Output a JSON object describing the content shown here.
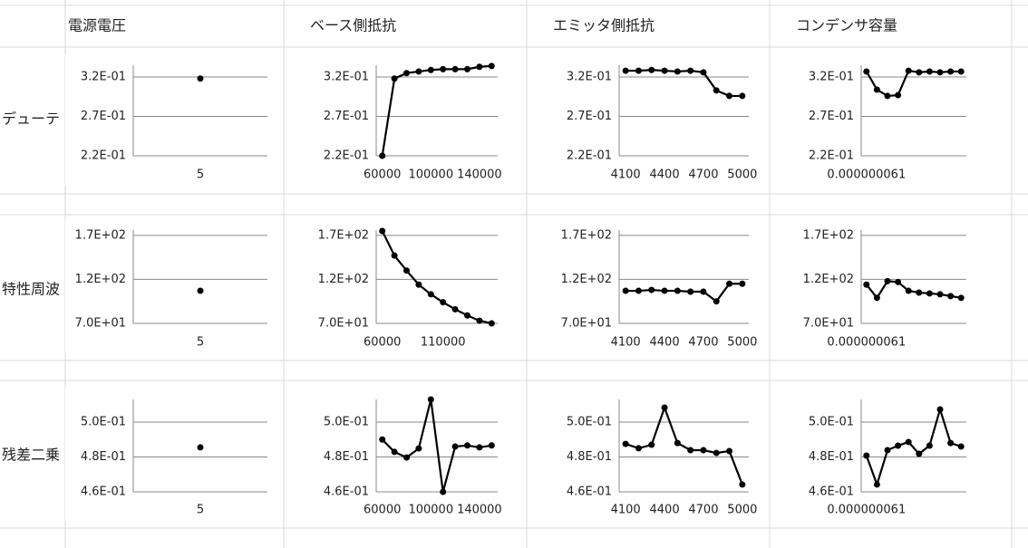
{
  "column_headers": [
    "電源電圧",
    "ベース側抵抗",
    "エミッタ側抵抗",
    "コンデンサ容量"
  ],
  "row_headers": [
    "デューテ",
    "特性周波",
    "残差二乗"
  ],
  "chart_data": [
    {
      "type": "line",
      "categories": [
        "5"
      ],
      "values": [
        0.318
      ],
      "color": "#000000",
      "ylim": [
        0.22,
        0.335
      ],
      "yticks": [
        {
          "value": 0.22,
          "label": "2.2E-01"
        },
        {
          "value": 0.27,
          "label": "2.7E-01"
        },
        {
          "value": 0.32,
          "label": "3.2E-01"
        }
      ],
      "grid": true
    },
    {
      "type": "line",
      "categories": [
        "60000",
        null,
        null,
        null,
        "100000",
        null,
        null,
        null,
        "140000",
        null
      ],
      "values": [
        0.22,
        0.318,
        0.325,
        0.327,
        0.329,
        0.33,
        0.33,
        0.33,
        0.333,
        0.334
      ],
      "color": "#000000",
      "ylim": [
        0.22,
        0.335
      ],
      "yticks": [
        {
          "value": 0.22,
          "label": "2.2E-01"
        },
        {
          "value": 0.27,
          "label": "2.7E-01"
        },
        {
          "value": 0.32,
          "label": "3.2E-01"
        }
      ],
      "grid": true
    },
    {
      "type": "line",
      "categories": [
        "4100",
        null,
        null,
        "4400",
        null,
        null,
        "4700",
        null,
        null,
        "5000"
      ],
      "values": [
        0.328,
        0.328,
        0.329,
        0.328,
        0.327,
        0.328,
        0.326,
        0.303,
        0.296,
        0.296
      ],
      "color": "#000000",
      "ylim": [
        0.22,
        0.335
      ],
      "yticks": [
        {
          "value": 0.22,
          "label": "2.2E-01"
        },
        {
          "value": 0.27,
          "label": "2.7E-01"
        },
        {
          "value": 0.32,
          "label": "3.2E-01"
        }
      ],
      "grid": true
    },
    {
      "type": "line",
      "categories": [
        "0.000000061",
        null,
        null,
        null,
        null,
        null,
        null,
        null,
        null,
        null
      ],
      "values": [
        0.327,
        0.304,
        0.296,
        0.297,
        0.328,
        0.326,
        0.327,
        0.326,
        0.327,
        0.327
      ],
      "color": "#000000",
      "ylim": [
        0.22,
        0.335
      ],
      "yticks": [
        {
          "value": 0.22,
          "label": "2.2E-01"
        },
        {
          "value": 0.27,
          "label": "2.7E-01"
        },
        {
          "value": 0.32,
          "label": "3.2E-01"
        }
      ],
      "grid": true
    },
    {
      "type": "line",
      "categories": [
        "5"
      ],
      "values": [
        107
      ],
      "color": "#000000",
      "ylim": [
        70,
        176
      ],
      "yticks": [
        {
          "value": 70,
          "label": "7.0E+01"
        },
        {
          "value": 120,
          "label": "1.2E+02"
        },
        {
          "value": 170,
          "label": "1.7E+02"
        }
      ],
      "grid": true
    },
    {
      "type": "line",
      "categories": [
        "60000",
        null,
        null,
        null,
        null,
        "110000",
        null,
        null,
        null,
        null
      ],
      "values": [
        175,
        147,
        130,
        114,
        103,
        94,
        86,
        79,
        73,
        70
      ],
      "color": "#000000",
      "ylim": [
        70,
        176
      ],
      "yticks": [
        {
          "value": 70,
          "label": "7.0E+01"
        },
        {
          "value": 120,
          "label": "1.2E+02"
        },
        {
          "value": 170,
          "label": "1.7E+02"
        }
      ],
      "grid": true
    },
    {
      "type": "line",
      "categories": [
        "4100",
        null,
        null,
        "4400",
        null,
        null,
        "4700",
        null,
        null,
        "5000"
      ],
      "values": [
        107,
        107,
        108,
        107,
        107,
        106,
        106,
        95,
        115,
        115
      ],
      "color": "#000000",
      "ylim": [
        70,
        176
      ],
      "yticks": [
        {
          "value": 70,
          "label": "7.0E+01"
        },
        {
          "value": 120,
          "label": "1.2E+02"
        },
        {
          "value": 170,
          "label": "1.7E+02"
        }
      ],
      "grid": true
    },
    {
      "type": "line",
      "categories": [
        "0.000000061",
        null,
        null,
        null,
        null,
        null,
        null,
        null,
        null,
        null
      ],
      "values": [
        114,
        99,
        118,
        117,
        107,
        105,
        104,
        103,
        101,
        99
      ],
      "color": "#000000",
      "ylim": [
        70,
        176
      ],
      "yticks": [
        {
          "value": 70,
          "label": "7.0E+01"
        },
        {
          "value": 120,
          "label": "1.2E+02"
        },
        {
          "value": 170,
          "label": "1.7E+02"
        }
      ],
      "grid": true
    },
    {
      "type": "line",
      "categories": [
        "5"
      ],
      "values": [
        0.4855
      ],
      "color": "#000000",
      "ylim": [
        0.46,
        0.513
      ],
      "yticks": [
        {
          "value": 0.46,
          "label": "4.6E-01"
        },
        {
          "value": 0.48,
          "label": "4.8E-01"
        },
        {
          "value": 0.5,
          "label": "5.0E-01"
        }
      ],
      "grid": true
    },
    {
      "type": "line",
      "categories": [
        "60000",
        null,
        null,
        null,
        "100000",
        null,
        null,
        null,
        "140000",
        null
      ],
      "values": [
        0.49,
        0.4829,
        0.4797,
        0.4849,
        0.513,
        0.46,
        0.486,
        0.4866,
        0.4855,
        0.4866
      ],
      "color": "#000000",
      "ylim": [
        0.46,
        0.513
      ],
      "yticks": [
        {
          "value": 0.46,
          "label": "4.6E-01"
        },
        {
          "value": 0.48,
          "label": "4.8E-01"
        },
        {
          "value": 0.5,
          "label": "5.0E-01"
        }
      ],
      "grid": true
    },
    {
      "type": "line",
      "categories": [
        "4100",
        null,
        null,
        "4400",
        null,
        null,
        "4700",
        null,
        null,
        "5000"
      ],
      "values": [
        0.4875,
        0.485,
        0.487,
        0.5083,
        0.488,
        0.4839,
        0.4839,
        0.4823,
        0.4834,
        0.4642
      ],
      "color": "#000000",
      "ylim": [
        0.46,
        0.513
      ],
      "yticks": [
        {
          "value": 0.46,
          "label": "4.6E-01"
        },
        {
          "value": 0.48,
          "label": "4.8E-01"
        },
        {
          "value": 0.5,
          "label": "5.0E-01"
        }
      ],
      "grid": true
    },
    {
      "type": "line",
      "categories": [
        "0.000000061",
        null,
        null,
        null,
        null,
        null,
        null,
        null,
        null,
        null
      ],
      "values": [
        0.4808,
        0.4642,
        0.4839,
        0.4865,
        0.4886,
        0.4818,
        0.4865,
        0.5073,
        0.488,
        0.486
      ],
      "color": "#000000",
      "ylim": [
        0.46,
        0.513
      ],
      "yticks": [
        {
          "value": 0.46,
          "label": "4.6E-01"
        },
        {
          "value": 0.48,
          "label": "4.8E-01"
        },
        {
          "value": 0.5,
          "label": "5.0E-01"
        }
      ],
      "grid": true
    }
  ]
}
